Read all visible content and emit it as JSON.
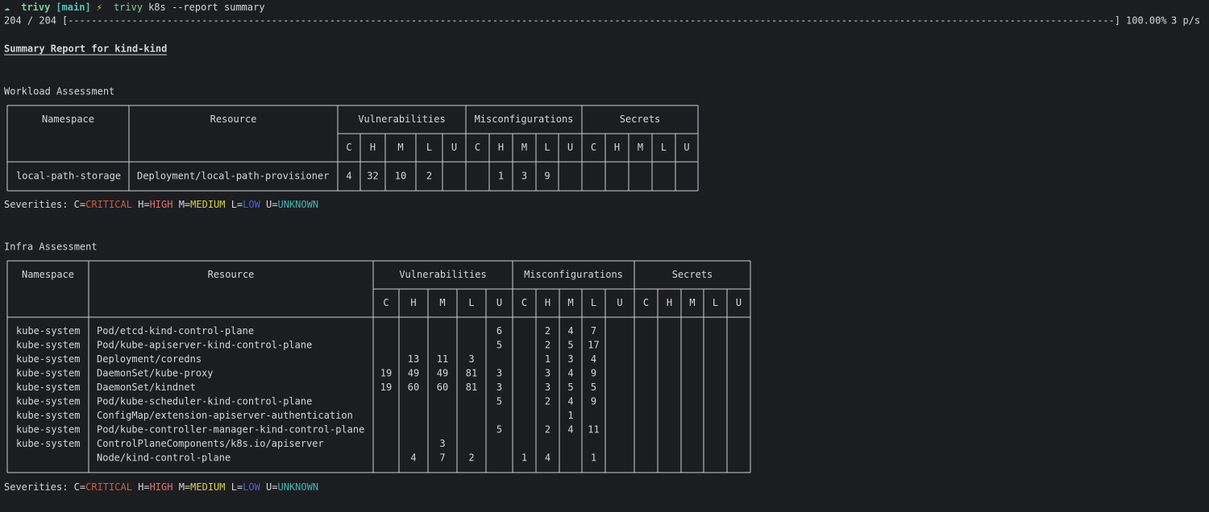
{
  "prompt": {
    "symbol": "☁",
    "dir": "trivy",
    "branch": "[main]",
    "icon": "⚡",
    "cmd": "trivy",
    "args": "k8s --report summary"
  },
  "progress": {
    "count": "204 / 204",
    "bar": "[------------------------------------------------------------------------------------------------------------------------------------------------------------------------------------]",
    "percent": "100.00%",
    "rate": "3 p/s"
  },
  "title": "Summary Report for kind-kind",
  "severity_colors": [
    "#cc5a44",
    "#dc766c",
    "#d6cf4c",
    "#4d5ed6",
    "#3fb6b0"
  ],
  "workload": {
    "heading": "Workload Assessment",
    "headers": {
      "namespace": "Namespace",
      "resource": "Resource",
      "groups": [
        "Vulnerabilities",
        "Misconfigurations",
        "Secrets"
      ],
      "severities": [
        "C",
        "H",
        "M",
        "L",
        "U"
      ]
    },
    "rows": [
      {
        "namespace": "local-path-storage",
        "resource": "Deployment/local-path-provisioner",
        "vulnerabilities": [
          4,
          32,
          10,
          2,
          null
        ],
        "misconfigurations": [
          null,
          1,
          3,
          9,
          null
        ],
        "secrets": [
          null,
          null,
          null,
          null,
          null
        ]
      }
    ],
    "legend": {
      "label": "Severities:",
      "items": [
        {
          "key": "C=",
          "name": "CRITICAL"
        },
        {
          "key": "H=",
          "name": "HIGH"
        },
        {
          "key": "M=",
          "name": "MEDIUM"
        },
        {
          "key": "L=",
          "name": "LOW"
        },
        {
          "key": "U=",
          "name": "UNKNOWN"
        }
      ]
    }
  },
  "infra": {
    "heading": "Infra Assessment",
    "headers": {
      "namespace": "Namespace",
      "resource": "Resource",
      "groups": [
        "Vulnerabilities",
        "Misconfigurations",
        "Secrets"
      ],
      "severities": [
        "C",
        "H",
        "M",
        "L",
        "U"
      ]
    },
    "rows": [
      {
        "namespace": "kube-system",
        "resource": "Pod/etcd-kind-control-plane",
        "vulnerabilities": [
          null,
          null,
          null,
          null,
          6
        ],
        "misconfigurations": [
          null,
          2,
          4,
          7,
          null
        ],
        "secrets": [
          null,
          null,
          null,
          null,
          null
        ]
      },
      {
        "namespace": "kube-system",
        "resource": "Pod/kube-apiserver-kind-control-plane",
        "vulnerabilities": [
          null,
          null,
          null,
          null,
          5
        ],
        "misconfigurations": [
          null,
          2,
          5,
          17,
          null
        ],
        "secrets": [
          null,
          null,
          null,
          null,
          null
        ]
      },
      {
        "namespace": "kube-system",
        "resource": "Deployment/coredns",
        "vulnerabilities": [
          null,
          13,
          11,
          3,
          null
        ],
        "misconfigurations": [
          null,
          1,
          3,
          4,
          null
        ],
        "secrets": [
          null,
          null,
          null,
          null,
          null
        ]
      },
      {
        "namespace": "kube-system",
        "resource": "DaemonSet/kube-proxy",
        "vulnerabilities": [
          19,
          49,
          49,
          81,
          3
        ],
        "misconfigurations": [
          null,
          3,
          4,
          9,
          null
        ],
        "secrets": [
          null,
          null,
          null,
          null,
          null
        ]
      },
      {
        "namespace": "kube-system",
        "resource": "DaemonSet/kindnet",
        "vulnerabilities": [
          19,
          60,
          60,
          81,
          3
        ],
        "misconfigurations": [
          null,
          3,
          5,
          5,
          null
        ],
        "secrets": [
          null,
          null,
          null,
          null,
          null
        ]
      },
      {
        "namespace": "kube-system",
        "resource": "Pod/kube-scheduler-kind-control-plane",
        "vulnerabilities": [
          null,
          null,
          null,
          null,
          5
        ],
        "misconfigurations": [
          null,
          2,
          4,
          9,
          null
        ],
        "secrets": [
          null,
          null,
          null,
          null,
          null
        ]
      },
      {
        "namespace": "kube-system",
        "resource": "ConfigMap/extension-apiserver-authentication",
        "vulnerabilities": [
          null,
          null,
          null,
          null,
          null
        ],
        "misconfigurations": [
          null,
          null,
          1,
          null,
          null
        ],
        "secrets": [
          null,
          null,
          null,
          null,
          null
        ]
      },
      {
        "namespace": "kube-system",
        "resource": "Pod/kube-controller-manager-kind-control-plane",
        "vulnerabilities": [
          null,
          null,
          null,
          null,
          5
        ],
        "misconfigurations": [
          null,
          2,
          4,
          11,
          null
        ],
        "secrets": [
          null,
          null,
          null,
          null,
          null
        ]
      },
      {
        "namespace": "kube-system",
        "resource": "ControlPlaneComponents/k8s.io/apiserver",
        "vulnerabilities": [
          null,
          null,
          3,
          null,
          null
        ],
        "misconfigurations": [
          null,
          null,
          null,
          null,
          null
        ],
        "secrets": [
          null,
          null,
          null,
          null,
          null
        ]
      },
      {
        "namespace": null,
        "resource": "Node/kind-control-plane",
        "vulnerabilities": [
          null,
          4,
          7,
          2,
          null
        ],
        "misconfigurations": [
          1,
          4,
          null,
          1,
          null
        ],
        "secrets": [
          null,
          null,
          null,
          null,
          null
        ]
      }
    ],
    "legend": {
      "label": "Severities:",
      "items": [
        {
          "key": "C=",
          "name": "CRITICAL"
        },
        {
          "key": "H=",
          "name": "HIGH"
        },
        {
          "key": "M=",
          "name": "MEDIUM"
        },
        {
          "key": "L=",
          "name": "LOW"
        },
        {
          "key": "U=",
          "name": "UNKNOWN"
        }
      ]
    }
  }
}
